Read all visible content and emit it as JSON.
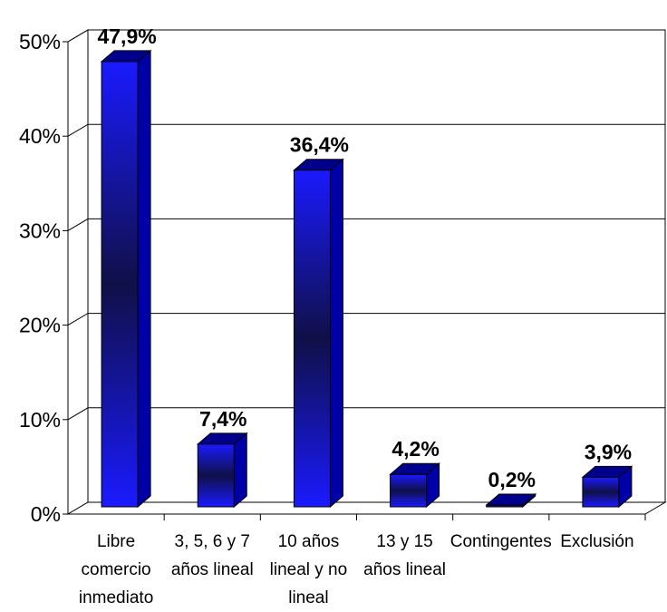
{
  "chart_data": {
    "type": "bar",
    "title": "",
    "xlabel": "",
    "ylabel": "",
    "ylim": [
      0,
      50
    ],
    "y_ticks": [
      "0%",
      "10%",
      "20%",
      "30%",
      "40%",
      "50%"
    ],
    "grid": "horizontal",
    "style": "3d",
    "categories": [
      [
        "Libre",
        "comercio",
        "inmediato"
      ],
      [
        "3, 5, 6 y 7",
        "años lineal"
      ],
      [
        "10 años",
        "lineal y no",
        "lineal"
      ],
      [
        "13 y 15",
        "años lineal"
      ],
      [
        "Contingentes"
      ],
      [
        "Exclusión"
      ]
    ],
    "values": [
      47.9,
      7.4,
      36.4,
      4.2,
      0.2,
      3.9
    ],
    "data_labels": [
      "47,9%",
      "7,4%",
      "36,4%",
      "4,2%",
      "0,2%",
      "3,9%"
    ],
    "colors": {
      "bar_light": "#1a1aff",
      "bar_dark": "#101048",
      "bar_side": "#0000a8",
      "bar_top": "#00008c"
    }
  }
}
